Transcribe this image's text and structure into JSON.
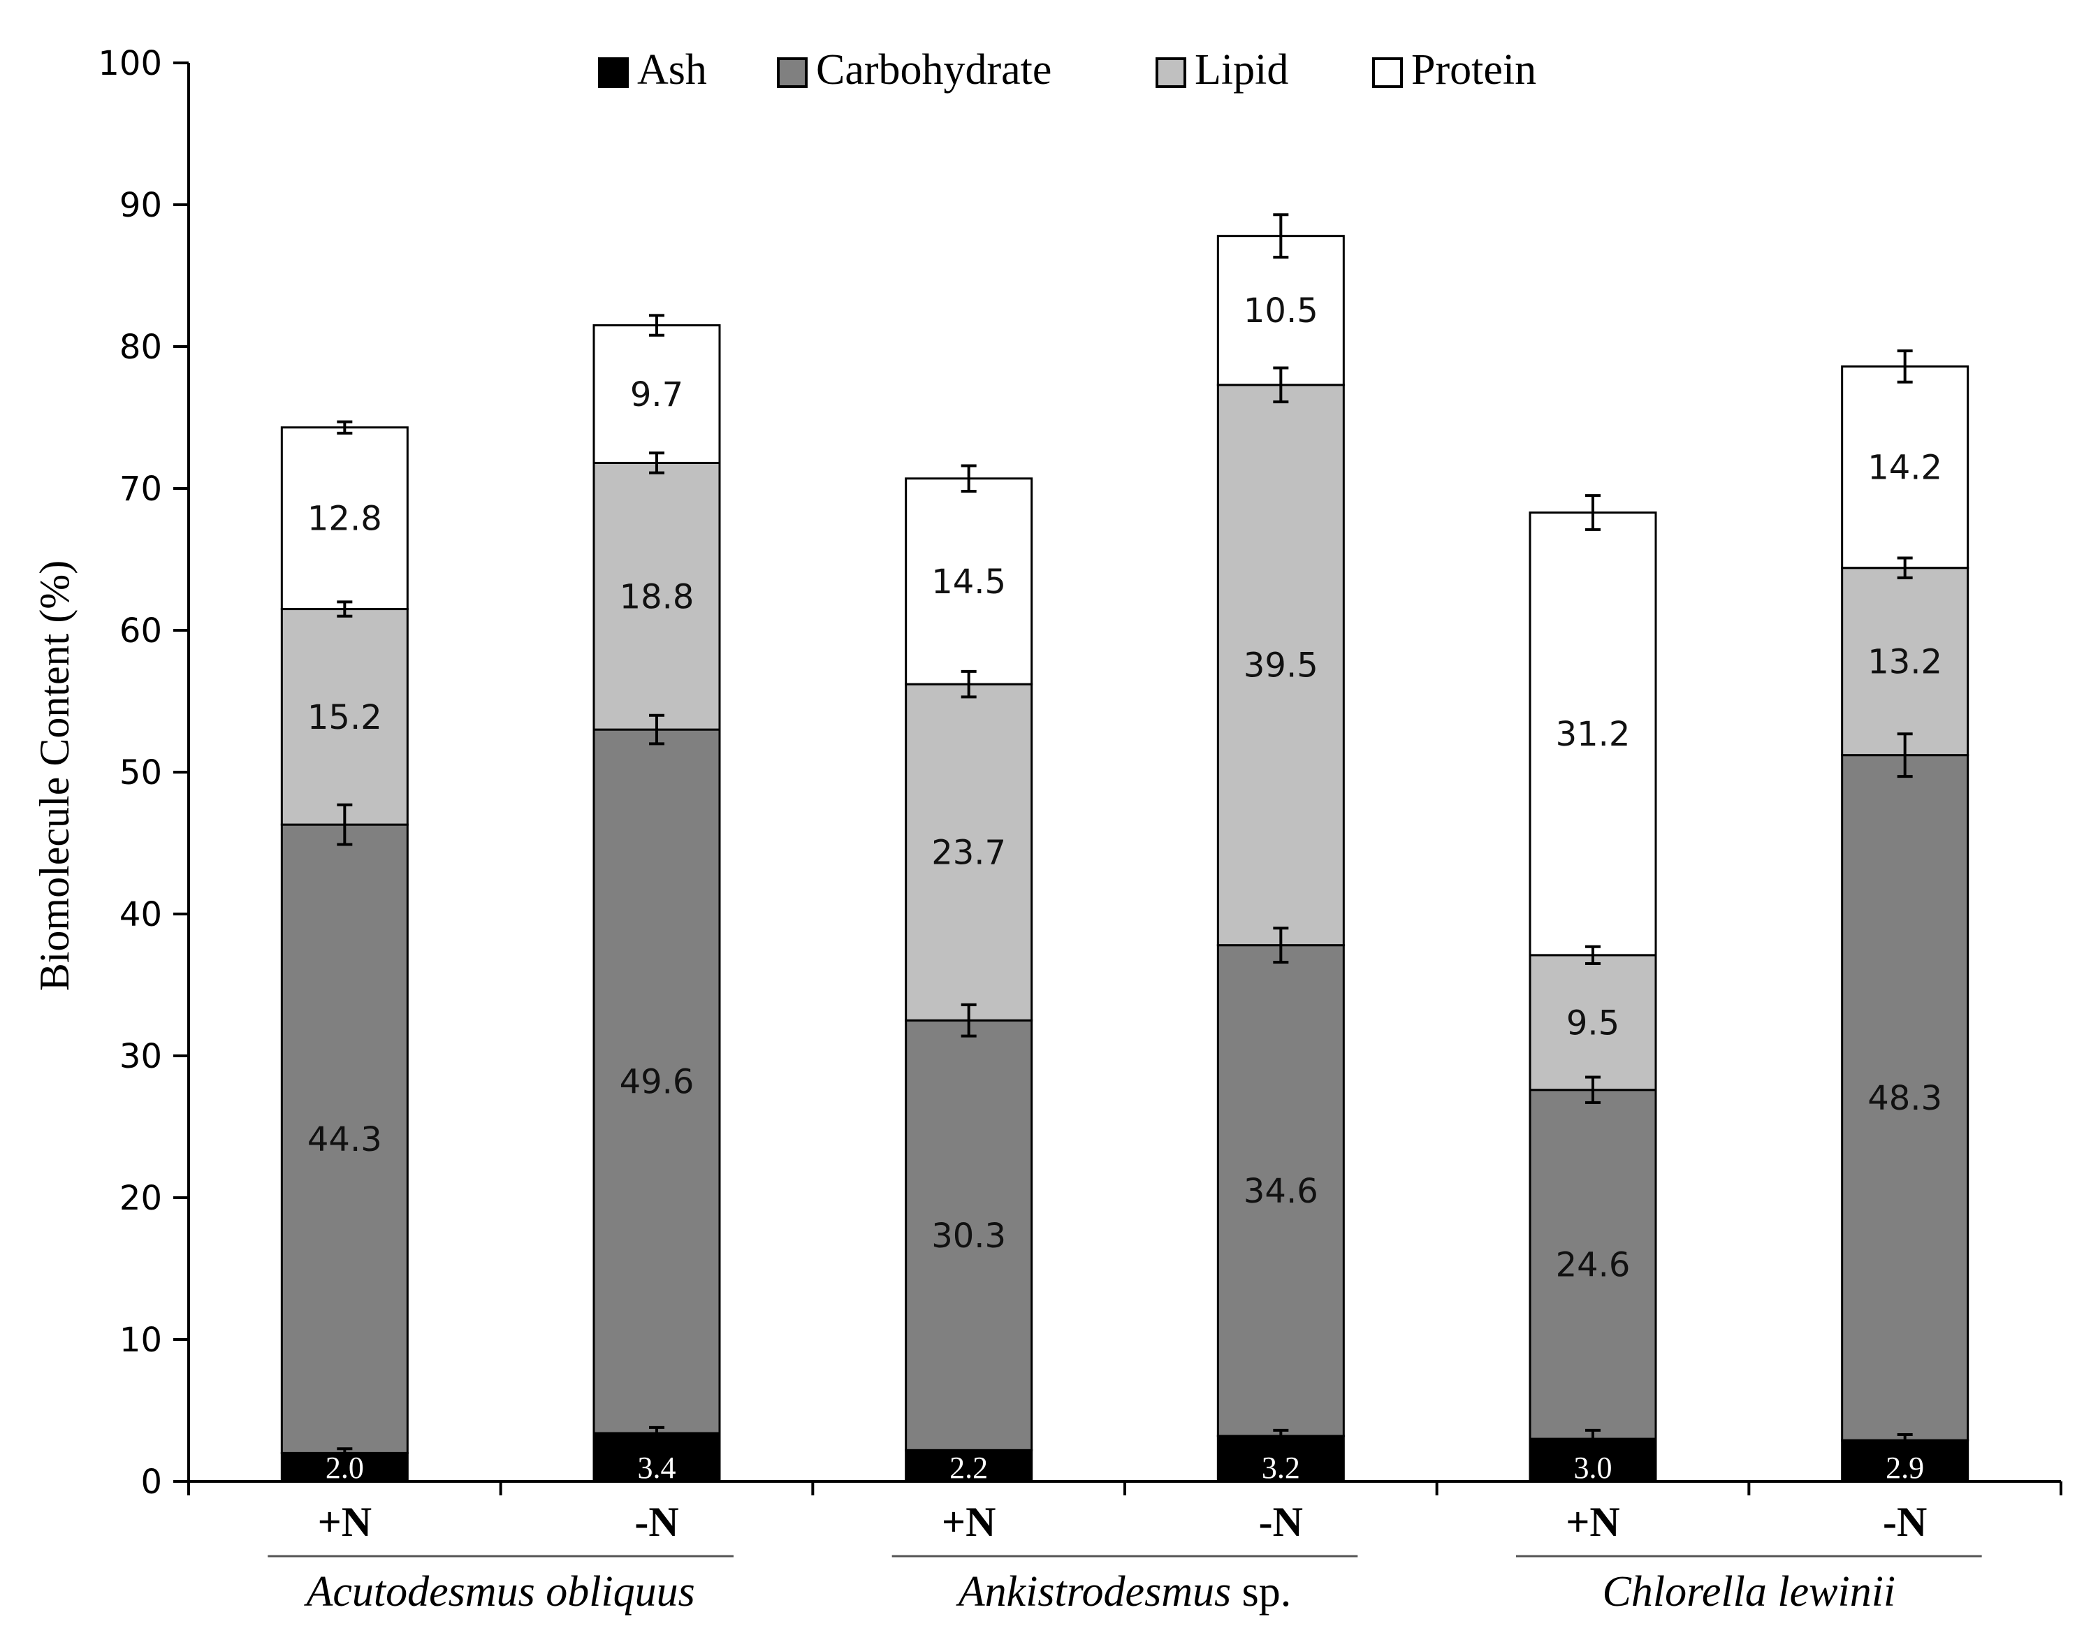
{
  "chart_data": {
    "type": "bar",
    "stacked": true,
    "title": "",
    "ylabel": "Biomolecule Content (%)",
    "xlabel": "",
    "ylim": [
      0,
      100
    ],
    "yticks": [
      0,
      10,
      20,
      30,
      40,
      50,
      60,
      70,
      80,
      90,
      100
    ],
    "grid": false,
    "legend_position": "top-center",
    "categories": [
      "+N",
      "-N",
      "+N",
      "-N",
      "+N",
      "-N"
    ],
    "groups": [
      {
        "name_italic": "Acutodesmus obliquus",
        "name_suffix": "",
        "categories": [
          0,
          1
        ]
      },
      {
        "name_italic": "Ankistrodesmus",
        "name_suffix": " sp.",
        "categories": [
          2,
          3
        ]
      },
      {
        "name_italic": "Chlorella lewinii",
        "name_suffix": "",
        "categories": [
          4,
          5
        ]
      }
    ],
    "series": [
      {
        "name": "Ash",
        "color": "#000000",
        "label_color": "#ffffff",
        "values": [
          2.0,
          3.4,
          2.2,
          3.2,
          3.0,
          2.9
        ],
        "errors": [
          0.3,
          0.4,
          0.0,
          0.4,
          0.6,
          0.4
        ],
        "labels": [
          "2.0",
          "3.4",
          "2.2",
          "3.2",
          "3.0",
          "2.9"
        ]
      },
      {
        "name": "Carbohydrate",
        "color": "#808080",
        "label_color": "#111111",
        "values": [
          44.3,
          49.6,
          30.3,
          34.6,
          24.6,
          48.3
        ],
        "errors": [
          1.4,
          1.0,
          1.1,
          1.2,
          0.9,
          1.5
        ],
        "labels": [
          "44.3",
          "49.6",
          "30.3",
          "34.6",
          "24.6",
          "48.3"
        ]
      },
      {
        "name": "Lipid",
        "color": "#c0c0c0",
        "label_color": "#111111",
        "values": [
          15.2,
          18.8,
          23.7,
          39.5,
          9.5,
          13.2
        ],
        "errors": [
          0.5,
          0.7,
          0.9,
          1.2,
          0.6,
          0.7
        ],
        "labels": [
          "15.2",
          "18.8",
          "23.7",
          "39.5",
          "9.5",
          "13.2"
        ]
      },
      {
        "name": "Protein",
        "color": "#ffffff",
        "label_color": "#111111",
        "values": [
          12.8,
          9.7,
          14.5,
          10.5,
          31.2,
          14.2
        ],
        "errors": [
          0.4,
          0.7,
          0.9,
          1.5,
          1.2,
          1.1
        ],
        "labels": [
          "12.8",
          "9.7",
          "14.5",
          "10.5",
          "31.2",
          "14.2"
        ]
      }
    ]
  }
}
